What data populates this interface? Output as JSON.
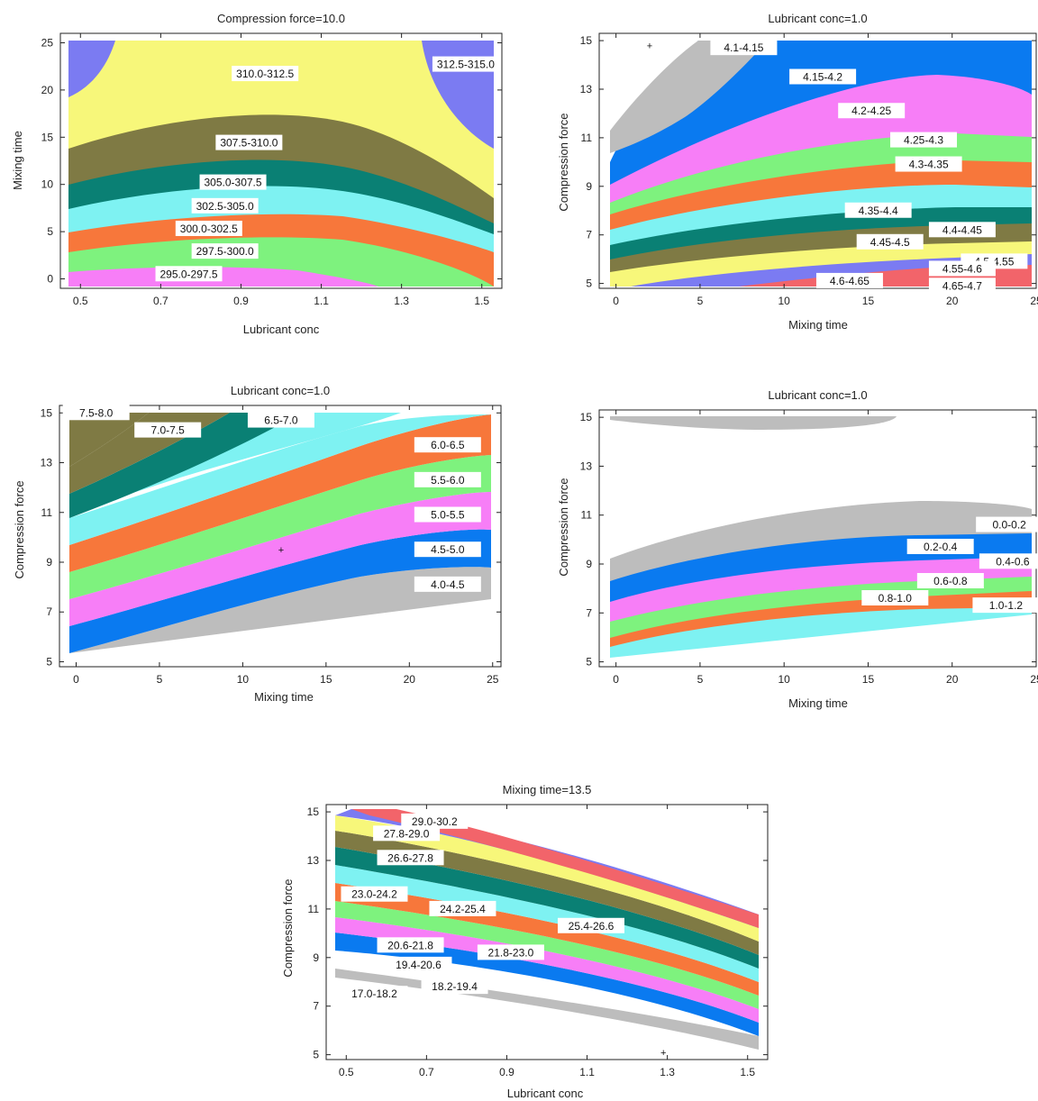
{
  "colors": {
    "gray": "#bdbdbd",
    "blue": "#0a7af0",
    "pink": "#f77ef7",
    "green": "#7ef27e",
    "orange": "#f7773b",
    "cyan": "#7ef2f2",
    "teal": "#0a8074",
    "olive": "#7f7a44",
    "yellow": "#f7f77a",
    "periwinkle": "#7b7bf2",
    "red": "#f2646a"
  },
  "chart_data": [
    {
      "type": "contour",
      "title": "Compression force=10.0",
      "xlabel": "Lubricant conc",
      "ylabel": "Mixing time",
      "xlim": [
        0.45,
        1.55
      ],
      "ylim": [
        -1,
        26
      ],
      "xticks": [
        "0.5",
        "0.7",
        "0.9",
        "1.1",
        "1.3",
        "1.5"
      ],
      "yticks": [
        "0",
        "5",
        "10",
        "15",
        "20",
        "25"
      ],
      "levels": [
        {
          "name": "295.0-297.5",
          "color": "pink",
          "label_at": [
            0.77,
            0.5
          ],
          "upper": [
            [
              0.5,
              1.5
            ],
            [
              0.9,
              2.2
            ],
            [
              1.5,
              0.2
            ]
          ]
        },
        {
          "name": "297.5-300.0",
          "color": "green",
          "label_at": [
            0.86,
            2.9
          ],
          "upper": [
            [
              0.5,
              3.5
            ],
            [
              0.9,
              4.4
            ],
            [
              1.5,
              1.2
            ]
          ]
        },
        {
          "name": "300.0-302.5",
          "color": "orange",
          "label_at": [
            0.82,
            5.3
          ],
          "upper": [
            [
              0.5,
              5.8
            ],
            [
              0.9,
              6.8
            ],
            [
              1.5,
              3.6
            ]
          ]
        },
        {
          "name": "302.5-305.0",
          "color": "cyan",
          "label_at": [
            0.86,
            7.7
          ],
          "upper": [
            [
              0.5,
              8.3
            ],
            [
              0.9,
              9.5
            ],
            [
              1.5,
              6.0
            ]
          ]
        },
        {
          "name": "305.0-307.5",
          "color": "teal",
          "label_at": [
            0.88,
            10.2
          ],
          "upper": [
            [
              0.5,
              10.8
            ],
            [
              0.9,
              12.6
            ],
            [
              1.5,
              8.3
            ]
          ]
        },
        {
          "name": "307.5-310.0",
          "color": "olive",
          "label_at": [
            0.92,
            14.4
          ],
          "upper": [
            [
              0.5,
              14.2
            ],
            [
              0.9,
              17.6
            ],
            [
              1.5,
              12.0
            ]
          ]
        },
        {
          "name": "310.0-312.5",
          "color": "yellow",
          "label_at": [
            0.96,
            21.7
          ],
          "upper": [
            [
              0.5,
              26
            ],
            [
              1.5,
              26
            ]
          ]
        },
        {
          "name": "312.5-315.0",
          "color": "periwinkle",
          "label_at": [
            1.46,
            22.7
          ]
        }
      ],
      "markers": []
    },
    {
      "type": "contour",
      "title": "Lubricant conc=1.0",
      "xlabel": "Mixing time",
      "ylabel": "Compression force",
      "xlim": [
        -1,
        25
      ],
      "ylim": [
        4.8,
        15.3
      ],
      "xticks": [
        "0",
        "5",
        "10",
        "15",
        "20",
        "25"
      ],
      "yticks": [
        "5",
        "7",
        "9",
        "11",
        "13",
        "15"
      ],
      "levels": [
        {
          "name": "4.1-4.15",
          "color": "gray",
          "label_at": [
            7.6,
            14.7
          ]
        },
        {
          "name": "4.15-4.2",
          "color": "blue",
          "label_at": [
            12.3,
            13.5
          ]
        },
        {
          "name": "4.2-4.25",
          "color": "pink",
          "label_at": [
            15.2,
            12.1
          ]
        },
        {
          "name": "4.25-4.3",
          "color": "green",
          "label_at": [
            18.3,
            10.9
          ]
        },
        {
          "name": "4.3-4.35",
          "color": "orange",
          "label_at": [
            18.6,
            9.9
          ]
        },
        {
          "name": "4.35-4.4",
          "color": "cyan",
          "label_at": [
            15.6,
            8.0
          ]
        },
        {
          "name": "4.4-4.45",
          "color": "teal",
          "label_at": [
            20.6,
            7.2
          ]
        },
        {
          "name": "4.45-4.5",
          "color": "olive",
          "label_at": [
            16.3,
            6.7
          ]
        },
        {
          "name": "4.5-4.55",
          "color": "yellow",
          "label_at": [
            22.5,
            5.9
          ]
        },
        {
          "name": "4.55-4.6",
          "color": "yellow",
          "label_at": [
            20.6,
            5.6
          ]
        },
        {
          "name": "4.6-4.65",
          "color": "periwinkle",
          "label_at": [
            13.9,
            5.1
          ]
        },
        {
          "name": "4.65-4.7",
          "color": "red",
          "label_at": [
            20.6,
            4.9
          ]
        }
      ],
      "markers": [
        [
          2,
          14.8
        ]
      ]
    },
    {
      "type": "contour",
      "title": "Lubricant conc=1.0",
      "xlabel": "Mixing time",
      "ylabel": "Compression force",
      "xlim": [
        -1,
        25.5
      ],
      "ylim": [
        4.8,
        15.3
      ],
      "xticks": [
        "0",
        "5",
        "10",
        "15",
        "20",
        "25"
      ],
      "yticks": [
        "5",
        "7",
        "9",
        "11",
        "13",
        "15"
      ],
      "levels": [
        {
          "name": "4.0-4.5",
          "color": "gray",
          "label_at": [
            22.3,
            8.1
          ]
        },
        {
          "name": "4.5-5.0",
          "color": "blue",
          "label_at": [
            22.3,
            9.5
          ]
        },
        {
          "name": "5.0-5.5",
          "color": "pink",
          "label_at": [
            22.3,
            10.9
          ]
        },
        {
          "name": "5.5-6.0",
          "color": "green",
          "label_at": [
            22.3,
            12.3
          ]
        },
        {
          "name": "6.0-6.5",
          "color": "orange",
          "label_at": [
            22.3,
            13.7
          ]
        },
        {
          "name": "6.5-7.0",
          "color": "cyan",
          "label_at": [
            12.3,
            14.7
          ]
        },
        {
          "name": "7.0-7.5",
          "color": "teal",
          "label_at": [
            5.5,
            14.3
          ]
        },
        {
          "name": "7.5-8.0",
          "color": "olive",
          "label_at": [
            1.2,
            15.0
          ]
        }
      ],
      "markers": [
        [
          12.3,
          9.5
        ]
      ]
    },
    {
      "type": "contour",
      "title": "Lubricant conc=1.0",
      "xlabel": "Mixing time",
      "ylabel": "Compression force",
      "xlim": [
        -1,
        25
      ],
      "ylim": [
        4.8,
        15.3
      ],
      "xticks": [
        "0",
        "5",
        "10",
        "15",
        "20",
        "25"
      ],
      "yticks": [
        "5",
        "7",
        "9",
        "11",
        "13",
        "15"
      ],
      "levels": [
        {
          "name": "0.0-0.2",
          "color": "gray",
          "label_at": [
            23.4,
            10.6
          ]
        },
        {
          "name": "0.2-0.4",
          "color": "blue",
          "label_at": [
            19.3,
            9.7
          ]
        },
        {
          "name": "0.4-0.6",
          "color": "pink",
          "label_at": [
            23.6,
            9.1
          ]
        },
        {
          "name": "0.6-0.8",
          "color": "green",
          "label_at": [
            19.9,
            8.3
          ]
        },
        {
          "name": "0.8-1.0",
          "color": "orange",
          "label_at": [
            16.6,
            7.6
          ]
        },
        {
          "name": "1.0-1.2",
          "color": "cyan",
          "label_at": [
            23.2,
            7.3
          ]
        }
      ],
      "markers": [
        [
          25,
          13.8
        ]
      ]
    },
    {
      "type": "contour",
      "title": "Mixing time=13.5",
      "xlabel": "Lubricant conc",
      "ylabel": "Compression force",
      "xlim": [
        0.45,
        1.55
      ],
      "ylim": [
        4.8,
        15.3
      ],
      "xticks": [
        "0.5",
        "0.7",
        "0.9",
        "1.1",
        "1.3",
        "1.5"
      ],
      "yticks": [
        "5",
        "7",
        "9",
        "11",
        "13",
        "15"
      ],
      "levels": [
        {
          "name": "17.0-18.2",
          "color": "gray",
          "label_at": [
            0.57,
            7.5
          ]
        },
        {
          "name": "18.2-19.4",
          "color": "blue",
          "label_at": [
            0.77,
            7.8
          ]
        },
        {
          "name": "19.4-20.6",
          "color": "pink",
          "label_at": [
            0.68,
            8.7
          ]
        },
        {
          "name": "20.6-21.8",
          "color": "green",
          "label_at": [
            0.66,
            9.5
          ]
        },
        {
          "name": "21.8-23.0",
          "color": "orange",
          "label_at": [
            0.91,
            9.2
          ]
        },
        {
          "name": "23.0-24.2",
          "color": "cyan",
          "label_at": [
            0.57,
            11.6
          ]
        },
        {
          "name": "24.2-25.4",
          "color": "teal",
          "label_at": [
            0.79,
            11.0
          ]
        },
        {
          "name": "25.4-26.6",
          "color": "olive",
          "label_at": [
            1.11,
            10.3
          ]
        },
        {
          "name": "26.6-27.8",
          "color": "yellow",
          "label_at": [
            0.66,
            13.1
          ]
        },
        {
          "name": "27.8-29.0",
          "color": "periwinkle",
          "label_at": [
            0.65,
            14.1
          ]
        },
        {
          "name": "29.0-30.2",
          "color": "red",
          "label_at": [
            0.72,
            14.6
          ]
        }
      ],
      "markers": [
        [
          1.29,
          5.1
        ]
      ]
    }
  ]
}
